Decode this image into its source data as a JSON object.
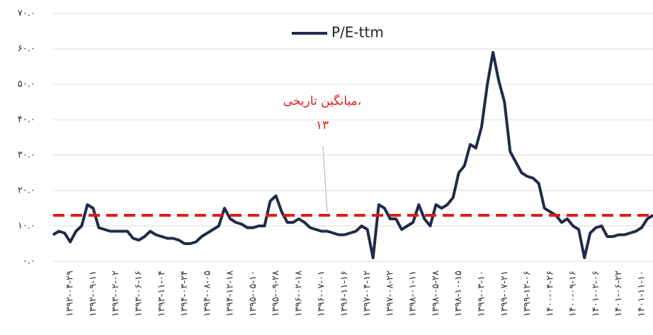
{
  "chart_data": {
    "type": "line",
    "legend_label": "P/E-ttm",
    "categories": [
      null,
      null,
      null,
      "۱۳۹۲-۰۴-۲۹",
      null,
      null,
      null,
      "۱۳۹۲-۰۹-۱۱",
      null,
      null,
      null,
      "۱۳۹۳-۰۲-۰۲",
      null,
      null,
      null,
      "۱۳۹۳-۰۶-۱۶",
      null,
      null,
      null,
      "۱۳۹۳-۱۱-۰۴",
      null,
      null,
      null,
      "۱۳۹۴-۰۳-۲۴",
      null,
      null,
      null,
      "۱۳۹۴-۰۸-۰۵",
      null,
      null,
      null,
      "۱۳۹۴-۱۲-۱۸",
      null,
      null,
      null,
      "۱۳۹۵-۰۵-۱۰",
      null,
      null,
      null,
      "۱۳۹۵-۰۹-۲۸",
      null,
      null,
      null,
      "۱۳۹۶-۰۲-۱۸",
      null,
      null,
      null,
      "۱۳۹۶-۰۷-۰۱",
      null,
      null,
      null,
      "۱۳۹۶-۱۱-۱۶",
      null,
      null,
      null,
      "۱۳۹۷-۰۴-۱۲",
      null,
      null,
      null,
      "۱۳۹۷-۰۸-۲۲",
      null,
      null,
      null,
      "۱۳۹۸-۰۱-۱۱",
      null,
      null,
      null,
      "۱۳۹۸-۰۵-۲۸",
      null,
      null,
      null,
      "۱۳۹۸-۱۰-۱۵",
      null,
      null,
      null,
      "۱۳۹۹-۰۳-۱۰",
      null,
      null,
      null,
      "۱۳۹۹-۰۷-۲۱",
      null,
      null,
      null,
      "۱۳۹۹-۱۲-۰۶",
      null,
      null,
      null,
      "۱۴۰۰-۰۴-۲۶",
      null,
      null,
      null,
      "۱۴۰۰-۰۹-۱۶",
      null,
      null,
      null,
      "۱۴۰۱-۰۲-۰۶",
      null,
      null,
      null,
      "۱۴۰۱-۰۶-۲۲",
      null,
      null,
      null,
      "۱۴۰۱-۱۱-۱۰",
      null,
      null
    ],
    "series": [
      {
        "name": "P/E-ttm",
        "color": "#1f2b48",
        "values": [
          7.5,
          8.5,
          8,
          5.5,
          8.5,
          10,
          16,
          15,
          9.5,
          9,
          8.5,
          8.5,
          8.5,
          8.5,
          6.5,
          6,
          7,
          8.5,
          7.5,
          7,
          6.5,
          6.5,
          6,
          5,
          5,
          5.5,
          7,
          8,
          9,
          10,
          15,
          12,
          11,
          10.5,
          9.5,
          9.5,
          10,
          10,
          17,
          18.5,
          14,
          11,
          11,
          12,
          11,
          9.5,
          9,
          8.5,
          8.5,
          8,
          7.5,
          7.5,
          8,
          8.5,
          10,
          9,
          1,
          16,
          15,
          12,
          12,
          9,
          10,
          11,
          16,
          12,
          10,
          16,
          15,
          16,
          18,
          25,
          27,
          33,
          32,
          38,
          50,
          59,
          51,
          45,
          31,
          28,
          25,
          24,
          23.5,
          22,
          15,
          14,
          13,
          11,
          12,
          10,
          9,
          1,
          8,
          9.5,
          10,
          7,
          7,
          7.5,
          7.5,
          8,
          8.5,
          9.5,
          12,
          13
        ]
      }
    ],
    "average": {
      "value": 13,
      "label": "۱۳",
      "color": "#e31b1b"
    },
    "annotation": "میانگین تاریخی،",
    "ylim": [
      0,
      70
    ],
    "yticks": [
      {
        "value": 0,
        "label": "۰.۰"
      },
      {
        "value": 10,
        "label": "۱۰.۰"
      },
      {
        "value": 20,
        "label": "۲۰.۰"
      },
      {
        "value": 30,
        "label": "۳۰.۰"
      },
      {
        "value": 40,
        "label": "۴۰.۰"
      },
      {
        "value": 50,
        "label": "۵۰.۰"
      },
      {
        "value": 60,
        "label": "۶۰.۰"
      },
      {
        "value": 70,
        "label": "۷۰.۰"
      }
    ],
    "grid": true
  }
}
